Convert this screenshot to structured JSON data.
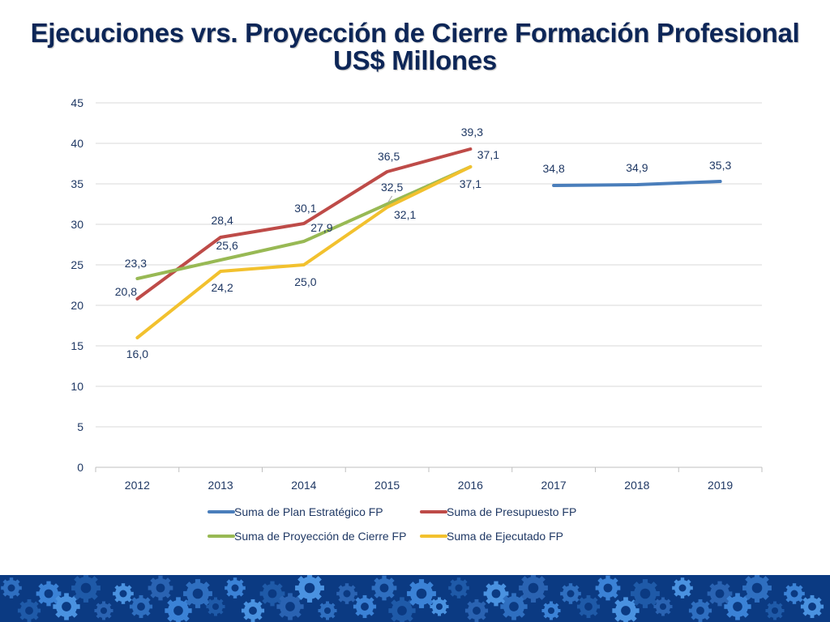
{
  "slide": {
    "title_line1": "Ejecuciones vrs. Proyección de Cierre Formación Profesional",
    "title_line2": "US$ Millones"
  },
  "chart_data": {
    "type": "line",
    "title": "",
    "xlabel": "",
    "ylabel": "",
    "categories": [
      "2012",
      "2013",
      "2014",
      "2015",
      "2016",
      "2017",
      "2018",
      "2019"
    ],
    "ylim": [
      0,
      45
    ],
    "yticks": [
      0,
      5,
      10,
      15,
      20,
      25,
      30,
      35,
      40,
      45
    ],
    "grid": true,
    "legend_position": "bottom",
    "series": [
      {
        "name": "Suma de Plan Estratégico FP",
        "color": "#4a7ebb",
        "values": [
          null,
          null,
          null,
          null,
          null,
          34.8,
          34.9,
          35.3
        ],
        "labels": [
          "",
          "",
          "",
          "",
          "",
          "34,8",
          "34,9",
          "35,3"
        ]
      },
      {
        "name": "Suma de Presupuesto FP",
        "color": "#be4b48",
        "values": [
          20.8,
          28.4,
          30.1,
          36.5,
          39.3,
          null,
          null,
          null
        ],
        "labels": [
          "20,8",
          "28,4",
          "30,1",
          "36,5",
          "39,3",
          "",
          "",
          ""
        ]
      },
      {
        "name": "Suma de Proyección de Cierre FP",
        "color": "#98b954",
        "values": [
          23.3,
          25.6,
          27.9,
          32.5,
          37.1,
          null,
          null,
          null
        ],
        "labels": [
          "23,3",
          "25,6",
          "27,9",
          "32,5",
          "37,1",
          "",
          "",
          ""
        ]
      },
      {
        "name": "Suma de Ejecutado FP",
        "color": "#f2c12e",
        "values": [
          16.0,
          24.2,
          25.0,
          32.1,
          37.1,
          null,
          null,
          null
        ],
        "labels": [
          "16,0",
          "24,2",
          "25,0",
          "32,1",
          "37,1",
          "",
          "",
          ""
        ]
      }
    ]
  },
  "footer": {
    "color": "#0b3a82",
    "pattern": "gear-icon"
  }
}
